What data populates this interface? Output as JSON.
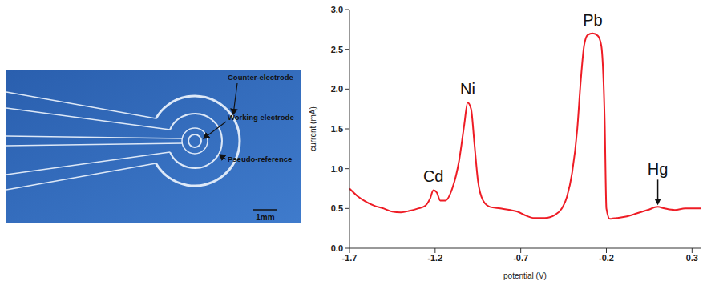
{
  "diagram": {
    "labels": [
      "Counter-electrode",
      "Working electrode",
      "Pseudo-reference"
    ],
    "scale_bar": "1mm"
  },
  "chart_data": {
    "type": "line",
    "x_label": "potential (V)",
    "y_label": "current (mA)",
    "color": "#ee1c25",
    "grid": false,
    "xlim": [
      -1.7,
      0.35
    ],
    "xticks": [
      -1.7,
      -1.2,
      -0.7,
      -0.2,
      0.3
    ],
    "ylim": [
      0,
      3
    ],
    "yticks": [
      {
        "value": 0,
        "label": "0.0"
      },
      0.5,
      {
        "value": 1,
        "label": "1.0"
      },
      1.5,
      {
        "value": 2,
        "label": "2.0"
      },
      2.5,
      {
        "value": 3,
        "label": "3.0"
      }
    ],
    "x": [
      -1.7,
      -1.65,
      -1.6,
      -1.55,
      -1.5,
      -1.45,
      -1.4,
      -1.35,
      -1.3,
      -1.26,
      -1.23,
      -1.21,
      -1.19,
      -1.17,
      -1.14,
      -1.1,
      -1.06,
      -1.03,
      -1.01,
      -0.99,
      -0.97,
      -0.95,
      -0.92,
      -0.88,
      -0.82,
      -0.76,
      -0.72,
      -0.68,
      -0.62,
      -0.56,
      -0.5,
      -0.46,
      -0.43,
      -0.4,
      -0.37,
      -0.35,
      -0.33,
      -0.31,
      -0.28,
      -0.25,
      -0.23,
      -0.21,
      -0.2,
      -0.18,
      -0.14,
      -0.08,
      -0.02,
      0.04,
      0.1,
      0.14,
      0.2,
      0.26,
      0.35
    ],
    "values": [
      0.75,
      0.65,
      0.58,
      0.53,
      0.5,
      0.46,
      0.45,
      0.47,
      0.5,
      0.53,
      0.62,
      0.73,
      0.7,
      0.6,
      0.6,
      0.75,
      1.1,
      1.55,
      1.83,
      1.75,
      1.3,
      0.85,
      0.6,
      0.52,
      0.5,
      0.48,
      0.46,
      0.42,
      0.38,
      0.38,
      0.42,
      0.5,
      0.65,
      0.95,
      1.5,
      2.1,
      2.55,
      2.68,
      2.7,
      2.67,
      2.55,
      1.6,
      0.5,
      0.37,
      0.38,
      0.4,
      0.44,
      0.48,
      0.52,
      0.5,
      0.48,
      0.5,
      0.5
    ],
    "annotations": [
      {
        "text": "Cd",
        "x": -1.21,
        "y": 0.73
      },
      {
        "text": "Ni",
        "x": -1.01,
        "y": 1.83
      },
      {
        "text": "Pb",
        "x": -0.28,
        "y": 2.7
      },
      {
        "text": "Hg",
        "x": 0.1,
        "y": 0.52,
        "arrow": true
      }
    ]
  }
}
